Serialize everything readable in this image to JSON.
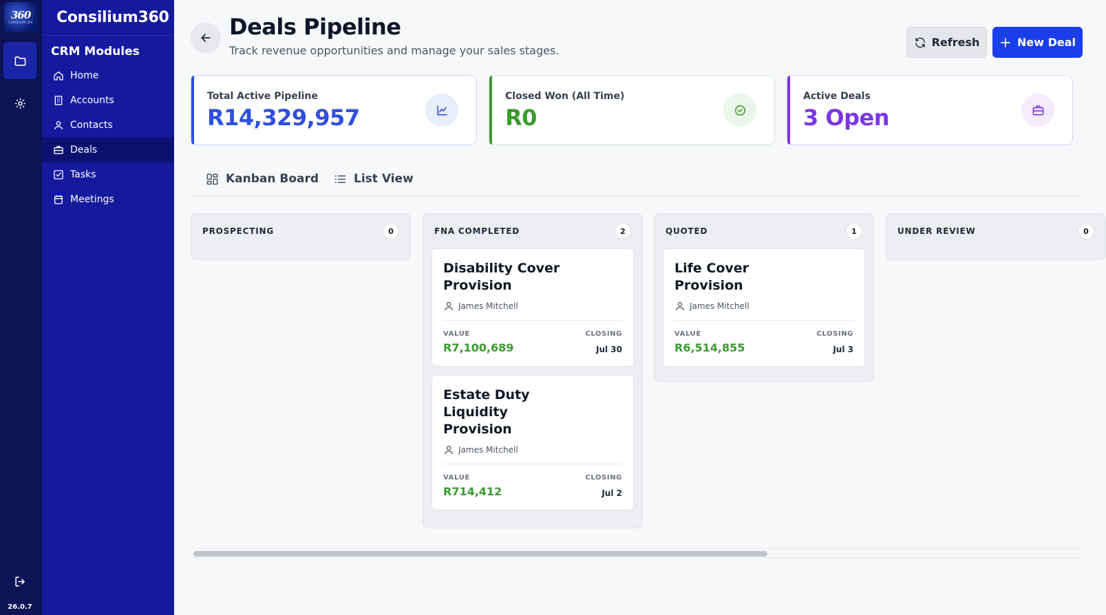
{
  "rail": {
    "logo_text": "360",
    "logo_subtext": "CONSILIUM 360",
    "version": "26.0.7",
    "icons": [
      "folder-icon",
      "gear-icon",
      "logout-icon"
    ]
  },
  "sidebar": {
    "brand": "Consilium360",
    "section_title": "CRM Modules",
    "items": [
      {
        "label": "Home",
        "icon": "home-icon"
      },
      {
        "label": "Accounts",
        "icon": "building-icon"
      },
      {
        "label": "Contacts",
        "icon": "user-icon"
      },
      {
        "label": "Deals",
        "icon": "briefcase-icon"
      },
      {
        "label": "Tasks",
        "icon": "checkbox-icon"
      },
      {
        "label": "Meetings",
        "icon": "calendar-icon"
      }
    ],
    "active": "Deals"
  },
  "header": {
    "title": "Deals Pipeline",
    "subtitle": "Track revenue opportunities and manage your sales stages.",
    "refresh_label": "Refresh",
    "new_label": "New Deal"
  },
  "stats": [
    {
      "label": "Total Active Pipeline",
      "value": "R14,329,957",
      "color": "#2f4fe0",
      "icon": "chart-icon"
    },
    {
      "label": "Closed Won (All Time)",
      "value": "R0",
      "color": "#3c9a30",
      "icon": "check-circle-icon"
    },
    {
      "label": "Active Deals",
      "value": "3 Open",
      "color": "#7c35e8",
      "icon": "briefcase-icon"
    }
  ],
  "tabs": [
    {
      "label": "Kanban Board",
      "icon": "grid-icon"
    },
    {
      "label": "List View",
      "icon": "list-icon"
    }
  ],
  "columns": [
    {
      "title": "PROSPECTING",
      "count": "0",
      "deals": []
    },
    {
      "title": "FNA COMPLETED",
      "count": "2",
      "deals": [
        {
          "title": "Disability Cover Provision",
          "owner": "James Mitchell",
          "value_label": "VALUE",
          "closing_label": "CLOSING",
          "value": "R7,100,689",
          "closing": "Jul 30"
        },
        {
          "title": "Estate Duty Liquidity Provision",
          "owner": "James Mitchell",
          "value_label": "VALUE",
          "closing_label": "CLOSING",
          "value": "R714,412",
          "closing": "Jul 2"
        }
      ]
    },
    {
      "title": "QUOTED",
      "count": "1",
      "deals": [
        {
          "title": "Life Cover Provision",
          "owner": "James Mitchell",
          "value_label": "VALUE",
          "closing_label": "CLOSING",
          "value": "R6,514,855",
          "closing": "Jul 3"
        }
      ]
    },
    {
      "title": "UNDER REVIEW",
      "count": "0",
      "deals": []
    }
  ],
  "colors": {
    "rail_bg": "#0c1356",
    "sidebar_bg": "#151a9c",
    "primary": "#1a3ee8",
    "money_green": "#3c9a30"
  }
}
